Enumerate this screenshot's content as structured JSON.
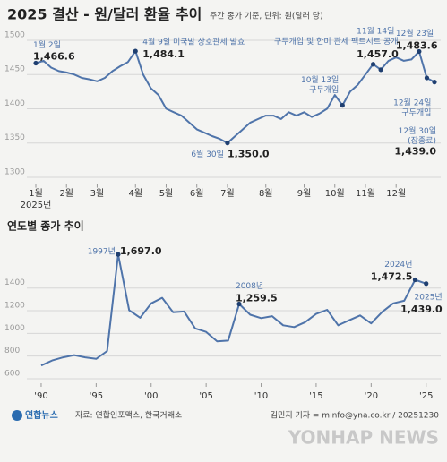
{
  "title": "2025 결산 - 원/달러 환율 추이",
  "subtitle": "주간 종가 기준, 단위: 원(달러 당)",
  "chart_data": [
    {
      "type": "line",
      "color": "#4f74aa",
      "grid": true,
      "categories": [
        "1월",
        null,
        null,
        null,
        "2월",
        null,
        null,
        null,
        "3월",
        null,
        null,
        null,
        null,
        "4월",
        null,
        null,
        null,
        "5월",
        null,
        null,
        null,
        "6월",
        null,
        null,
        null,
        "7월",
        null,
        null,
        null,
        null,
        "8월",
        null,
        null,
        null,
        null,
        "9월",
        null,
        null,
        null,
        "10월",
        null,
        null,
        null,
        "11월",
        null,
        null,
        null,
        "12월",
        null,
        null,
        null,
        null,
        null
      ],
      "x_sublabel": "2025년",
      "values": [
        1466.6,
        1470,
        1460,
        1455,
        1453,
        1450,
        1445,
        1443,
        1440,
        1445,
        1455,
        1462,
        1468,
        1484.1,
        1450,
        1430,
        1420,
        1400,
        1395,
        1390,
        1380,
        1370,
        1365,
        1360,
        1356,
        1350.0,
        1360,
        1370,
        1380,
        1385,
        1390,
        1390,
        1385,
        1395,
        1390,
        1395,
        1388,
        1393,
        1400,
        1420,
        1405,
        1425,
        1435,
        1450,
        1465,
        1457.0,
        1470,
        1475,
        1470,
        1472,
        1483.6,
        1445,
        1439.0
      ],
      "value_labels": [
        "1,466.6",
        null,
        null,
        null,
        null,
        null,
        null,
        null,
        null,
        null,
        null,
        null,
        null,
        "1,484.1",
        null,
        null,
        null,
        null,
        null,
        null,
        null,
        null,
        null,
        null,
        null,
        "1,350.0",
        null,
        null,
        null,
        null,
        null,
        null,
        null,
        null,
        null,
        null,
        null,
        null,
        null,
        null,
        null,
        null,
        null,
        null,
        null,
        "1,457.0",
        null,
        null,
        null,
        null,
        "1,483.6",
        null,
        "1,439.0"
      ],
      "point_notes": [
        [
          "1월 2일"
        ],
        null,
        null,
        null,
        null,
        null,
        null,
        null,
        null,
        null,
        null,
        null,
        null,
        [
          "4월 9일 미국발 상호관세 발효"
        ],
        null,
        null,
        null,
        null,
        null,
        null,
        null,
        null,
        null,
        null,
        null,
        [
          "6월 30일"
        ],
        null,
        null,
        null,
        null,
        null,
        null,
        null,
        null,
        null,
        null,
        null,
        null,
        null,
        null,
        [
          "10월 13일",
          "구두개입"
        ],
        null,
        null,
        null,
        [
          "구두개입 및 한미 관세 팩트시트 공개"
        ],
        [
          "11월 14일"
        ],
        null,
        null,
        null,
        null,
        [
          "12월 23일"
        ],
        [
          "12월 24일",
          "구두개입"
        ],
        [
          "12월 30일",
          "(장종료)"
        ]
      ],
      "ylim": [
        1290,
        1510
      ],
      "yticks": [
        1300,
        1350,
        1400,
        1450,
        1500
      ]
    },
    {
      "type": "line",
      "title": "연도별 종가 추이",
      "color": "#4f74aa",
      "grid": true,
      "x": [
        1990,
        1991,
        1992,
        1993,
        1994,
        1995,
        1996,
        1997,
        1998,
        1999,
        2000,
        2001,
        2002,
        2003,
        2004,
        2005,
        2006,
        2007,
        2008,
        2009,
        2010,
        2011,
        2012,
        2013,
        2014,
        2015,
        2016,
        2017,
        2018,
        2019,
        2020,
        2021,
        2022,
        2023,
        2024,
        2025
      ],
      "values": [
        716.4,
        760.8,
        788.4,
        808.1,
        788.7,
        774.7,
        844.2,
        1697.0,
        1204,
        1138,
        1264.5,
        1313.5,
        1186.2,
        1192.6,
        1043.8,
        1013.0,
        929.8,
        936.1,
        1259.5,
        1164.5,
        1134.8,
        1151.8,
        1071.1,
        1055.3,
        1099.2,
        1172.0,
        1207.7,
        1071.4,
        1115.7,
        1157.8,
        1088.0,
        1188.8,
        1264.5,
        1288.0,
        1472.5,
        1439.0
      ],
      "value_labels": [
        null,
        null,
        null,
        null,
        null,
        null,
        null,
        "1,697.0",
        null,
        null,
        null,
        null,
        null,
        null,
        null,
        null,
        null,
        null,
        "1,259.5",
        null,
        null,
        null,
        null,
        null,
        null,
        null,
        null,
        null,
        null,
        null,
        null,
        null,
        null,
        null,
        "1,472.5",
        "1,439.0"
      ],
      "point_notes": [
        null,
        null,
        null,
        null,
        null,
        null,
        null,
        [
          "1997년"
        ],
        null,
        null,
        null,
        null,
        null,
        null,
        null,
        null,
        null,
        null,
        [
          "2008년"
        ],
        null,
        null,
        null,
        null,
        null,
        null,
        null,
        null,
        null,
        null,
        null,
        null,
        null,
        null,
        null,
        [
          "2024년"
        ],
        [
          "2025년"
        ]
      ],
      "xlim": [
        1988.7,
        2026
      ],
      "xticks": [
        {
          "value": 1990,
          "label": "'90"
        },
        {
          "value": 1995,
          "label": "'95"
        },
        {
          "value": 2000,
          "label": "'00"
        },
        {
          "value": 2005,
          "label": "'05"
        },
        {
          "value": 2010,
          "label": "'10"
        },
        {
          "value": 2015,
          "label": "'15"
        },
        {
          "value": 2020,
          "label": "'20"
        },
        {
          "value": 2025,
          "label": "'25"
        }
      ],
      "ylim": [
        560,
        1720
      ],
      "yticks": [
        600,
        800,
        1000,
        1200,
        1400
      ]
    }
  ],
  "footer": {
    "logo": "연합뉴스",
    "source": "자료: 연합인포맥스, 한국거래소",
    "credit": "김민지 기자 = minfo@yna.co.kr / 20251230",
    "watermark": "YONHAP NEWS"
  }
}
